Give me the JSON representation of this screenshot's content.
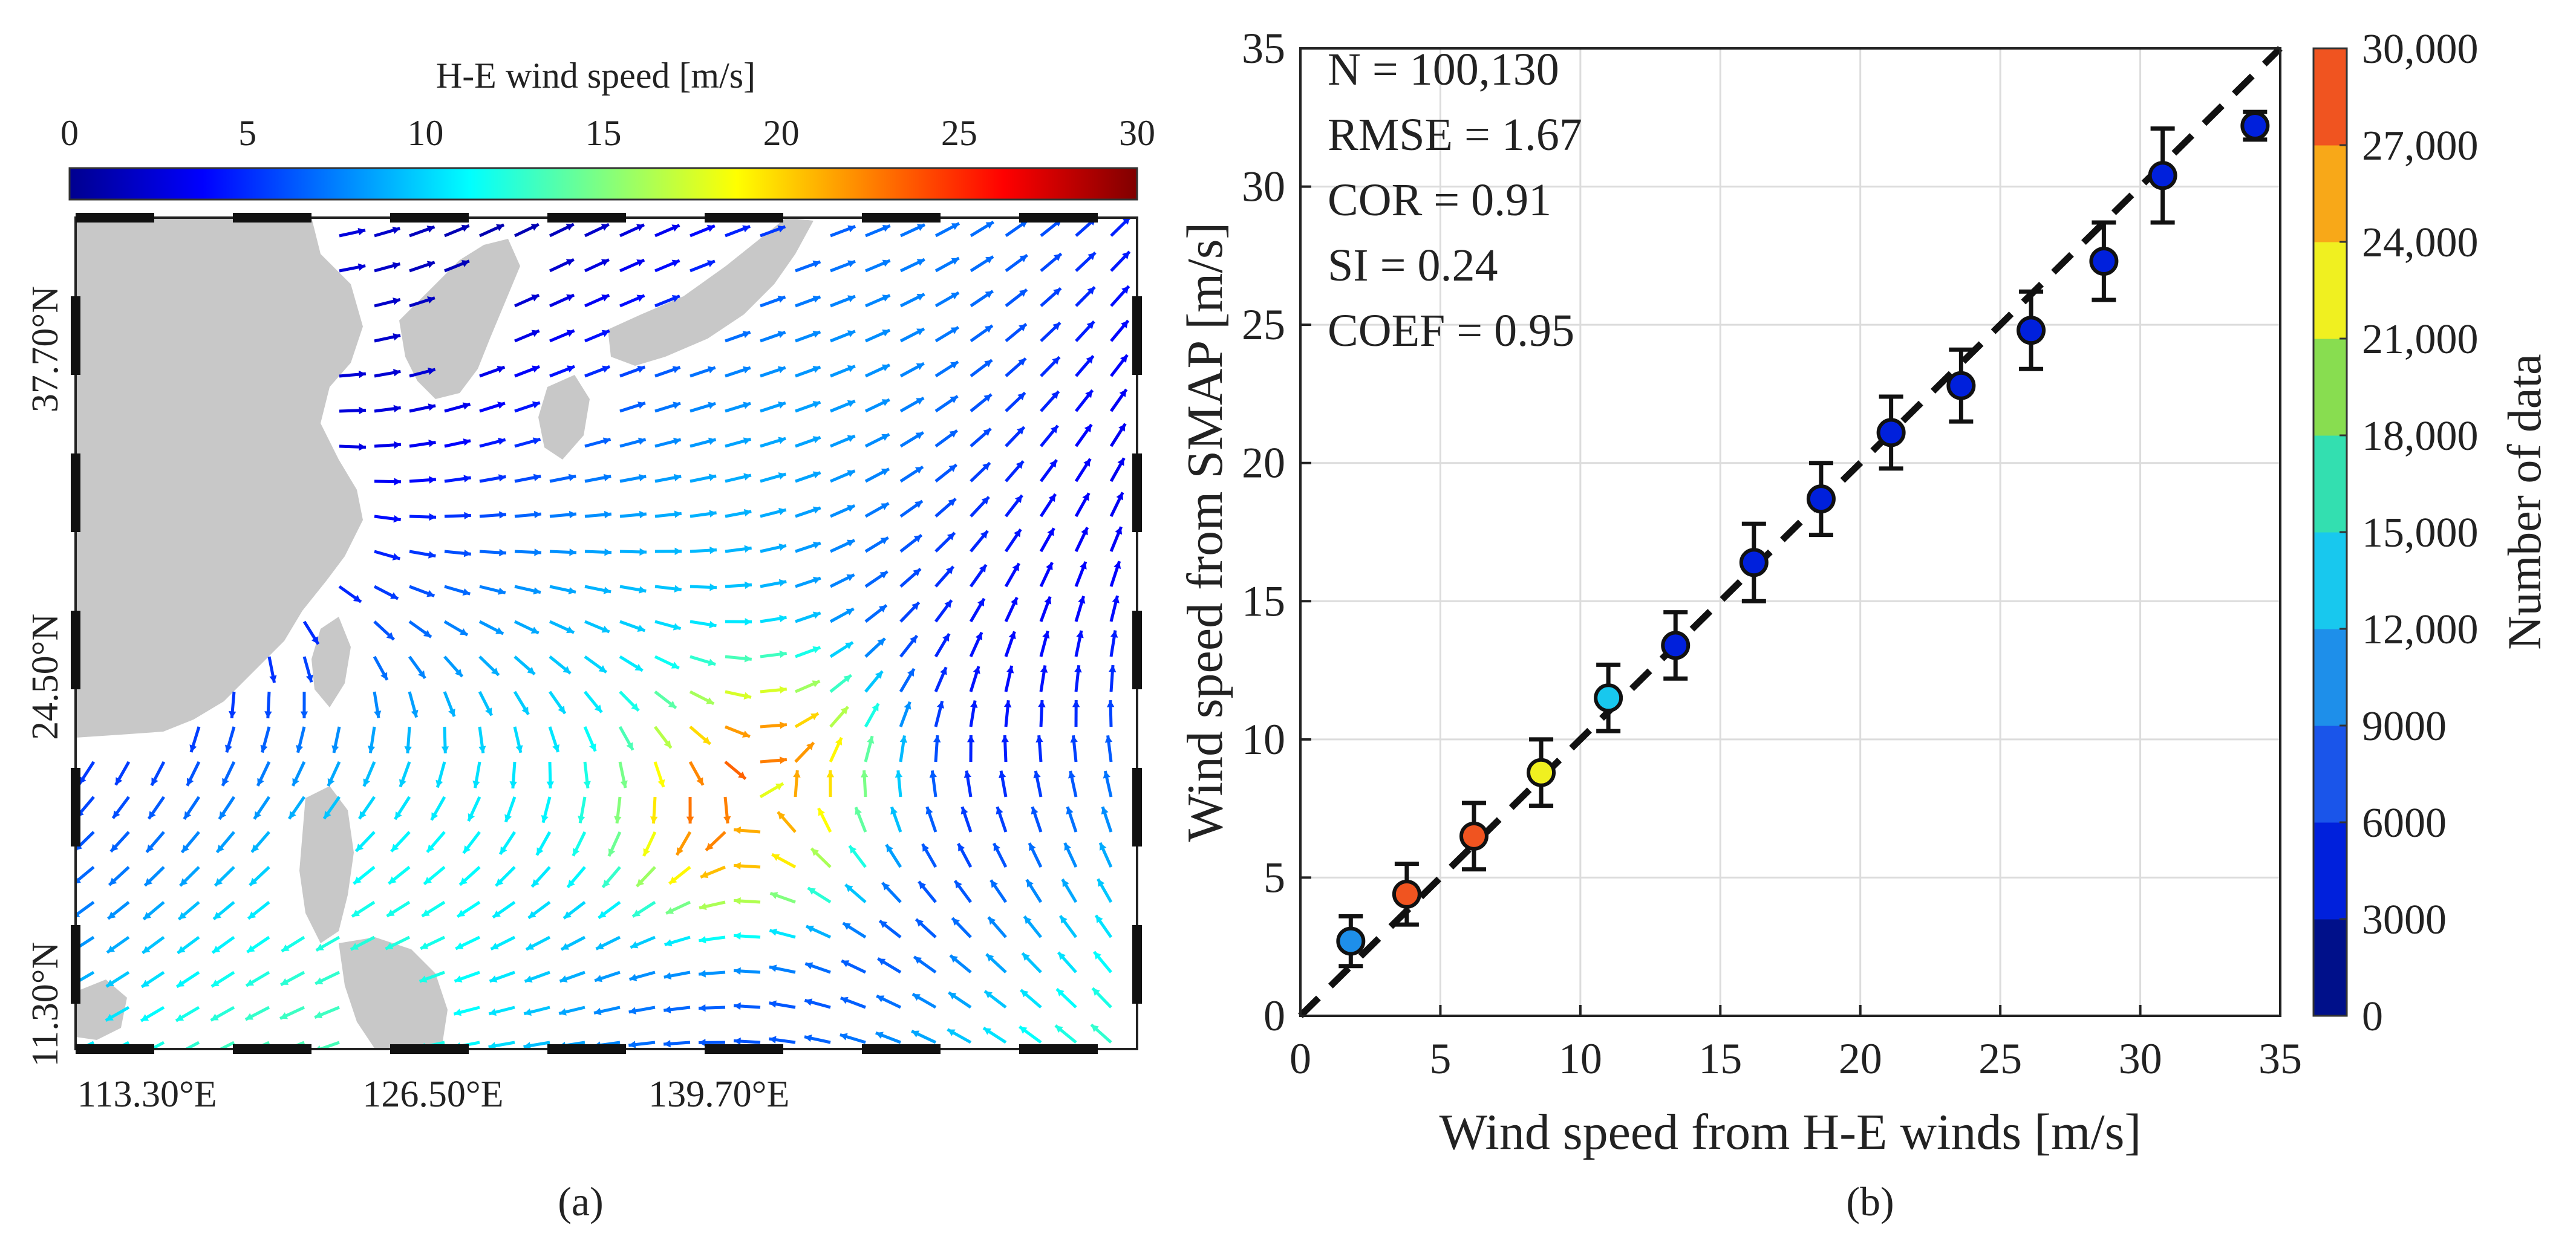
{
  "chart_data": [
    {
      "type": "vector_field_map",
      "panel_label": "(a)",
      "colorbar": {
        "title": "H-E wind speed [m/s]",
        "range": [
          0,
          30
        ],
        "ticks": [
          "0",
          "5",
          "10",
          "15",
          "20",
          "25",
          "30"
        ],
        "colormap": [
          "#00008f",
          "#0000ff",
          "#0080ff",
          "#00ffff",
          "#80ff80",
          "#ffff00",
          "#ff8000",
          "#ff0000",
          "#800000"
        ]
      },
      "lon_range": [
        110,
        159
      ],
      "lat_range": [
        9.5,
        43
      ],
      "lon_ticks": [
        {
          "value": 113.3,
          "label": "113.30°E"
        },
        {
          "value": 126.5,
          "label": "126.50°E"
        },
        {
          "value": 139.7,
          "label": "139.70°E"
        }
      ],
      "lat_ticks": [
        {
          "value": 11.3,
          "label": "11.30°N"
        },
        {
          "value": 24.5,
          "label": "24.50°N"
        },
        {
          "value": 37.7,
          "label": "37.70°N"
        }
      ],
      "cyclone_center": {
        "lon": 141.5,
        "lat": 19.5
      }
    },
    {
      "type": "scatter",
      "panel_label": "(b)",
      "xlabel": "Wind speed from H-E winds [m/s]",
      "ylabel": "Wind speed from SMAP [m/s]",
      "xlim": [
        0,
        35
      ],
      "ylim": [
        0,
        35
      ],
      "xticks": [
        0,
        5,
        10,
        15,
        20,
        25,
        30,
        35
      ],
      "yticks": [
        0,
        5,
        10,
        15,
        20,
        25,
        30,
        35
      ],
      "grid": true,
      "reference_line": "y = x (dashed)",
      "stats": [
        "N = 100,130",
        "RMSE = 1.67",
        "COR = 0.91",
        "SI = 0.24",
        "COEF = 0.95"
      ],
      "points": [
        {
          "x": 1.8,
          "y": 2.7,
          "err": 0.9,
          "count": 9000
        },
        {
          "x": 3.8,
          "y": 4.4,
          "err": 1.1,
          "count": 28000
        },
        {
          "x": 6.2,
          "y": 6.5,
          "err": 1.2,
          "count": 28500
        },
        {
          "x": 8.6,
          "y": 8.8,
          "err": 1.2,
          "count": 23000
        },
        {
          "x": 11.0,
          "y": 11.5,
          "err": 1.2,
          "count": 12500
        },
        {
          "x": 13.4,
          "y": 13.4,
          "err": 1.2,
          "count": 4500
        },
        {
          "x": 16.2,
          "y": 16.4,
          "err": 1.4,
          "count": 4000
        },
        {
          "x": 18.6,
          "y": 18.7,
          "err": 1.3,
          "count": 3500
        },
        {
          "x": 21.1,
          "y": 21.1,
          "err": 1.3,
          "count": 3000
        },
        {
          "x": 23.6,
          "y": 22.8,
          "err": 1.3,
          "count": 3000
        },
        {
          "x": 26.1,
          "y": 24.8,
          "err": 1.4,
          "count": 3000
        },
        {
          "x": 28.7,
          "y": 27.3,
          "err": 1.4,
          "count": 3000
        },
        {
          "x": 30.8,
          "y": 30.4,
          "err": 1.7,
          "count": 3000
        },
        {
          "x": 34.1,
          "y": 32.2,
          "err": 0.5,
          "count": 3000
        }
      ],
      "colorbar": {
        "title": "Number of data",
        "range": [
          0,
          30000
        ],
        "ticks": [
          "0",
          "3000",
          "6000",
          "9000",
          "12,000",
          "15,000",
          "18,000",
          "21,000",
          "24,000",
          "27,000",
          "30,000"
        ],
        "colors": [
          "#00108a",
          "#0020dc",
          "#1a55ea",
          "#1e8fea",
          "#18c8ee",
          "#33dfb0",
          "#88dd50",
          "#f0f020",
          "#f8a818",
          "#f05420"
        ]
      }
    }
  ]
}
